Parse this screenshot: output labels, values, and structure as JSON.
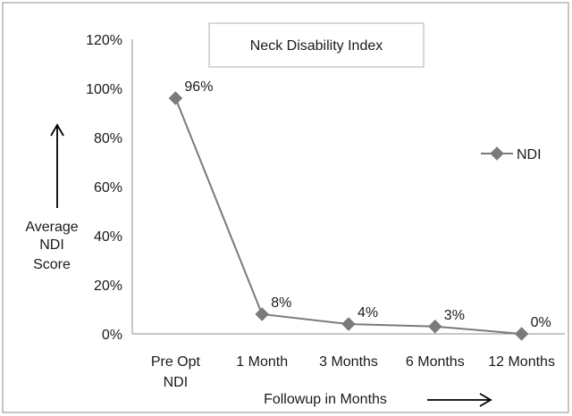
{
  "chart_data": {
    "type": "line",
    "title": "Neck Disability Index",
    "ylabel": [
      "Average",
      "NDI",
      "Score"
    ],
    "xlabel": "Followup in Months",
    "categories": [
      [
        "Pre Opt",
        "NDI"
      ],
      [
        "1 Month"
      ],
      [
        "3 Months"
      ],
      [
        "6 Months"
      ],
      [
        "12 Months"
      ]
    ],
    "series": [
      {
        "name": "NDI",
        "values": [
          96,
          8,
          4,
          3,
          0
        ],
        "labels": [
          "96%",
          "8%",
          "4%",
          "3%",
          "0%"
        ],
        "color": "#7a7a7a"
      }
    ],
    "ylim": [
      0,
      120
    ],
    "yticks": [
      "0%",
      "20%",
      "40%",
      "60%",
      "80%",
      "100%",
      "120%"
    ],
    "grid": false,
    "legend_position": "right"
  }
}
